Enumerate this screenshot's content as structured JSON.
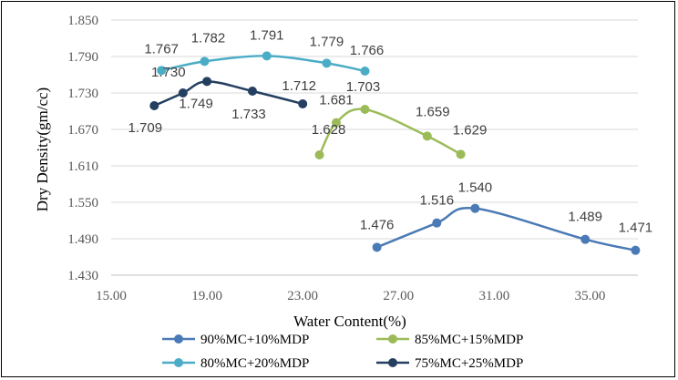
{
  "chart_data": {
    "type": "line",
    "title": "",
    "xlabel": "Water Content(%)",
    "ylabel": "Dry Density(gm/cc)",
    "xlim": [
      15.0,
      37.0
    ],
    "ylim": [
      1.43,
      1.85
    ],
    "x_ticks": [
      "15.00",
      "19.00",
      "23.00",
      "27.00",
      "31.00",
      "35.00"
    ],
    "y_ticks": [
      "1.430",
      "1.490",
      "1.550",
      "1.610",
      "1.670",
      "1.730",
      "1.790",
      "1.850"
    ],
    "grid": "horizontal",
    "legend_position": "bottom",
    "series": [
      {
        "name": "90%MC+10%MDP",
        "color": "#4a7ab5",
        "x": [
          26.1,
          28.6,
          30.2,
          34.8,
          36.9
        ],
        "y": [
          1.476,
          1.516,
          1.54,
          1.489,
          1.471
        ],
        "labels": [
          "1.476",
          "1.516",
          "1.540",
          "1.489",
          "1.471"
        ]
      },
      {
        "name": "85%MC+15%MDP",
        "color": "#9bbb59",
        "x": [
          23.7,
          24.4,
          25.6,
          28.2,
          29.6
        ],
        "y": [
          1.628,
          1.681,
          1.703,
          1.659,
          1.629
        ],
        "labels": [
          "1.628",
          "1.681",
          "1.703",
          "1.659",
          "1.629"
        ]
      },
      {
        "name": "80%MC+20%MDP",
        "color": "#4bacc6",
        "x": [
          17.1,
          18.9,
          21.5,
          24.0,
          25.6
        ],
        "y": [
          1.767,
          1.782,
          1.791,
          1.779,
          1.766
        ],
        "labels": [
          "1.767",
          "1.782",
          "1.791",
          "1.779",
          "1.766"
        ]
      },
      {
        "name": "75%MC+25%MDP",
        "color": "#243f60",
        "x": [
          16.8,
          18.0,
          19.0,
          20.9,
          23.0
        ],
        "y": [
          1.709,
          1.73,
          1.749,
          1.733,
          1.712
        ],
        "labels": [
          "1.709",
          "1.730",
          "1.749",
          "1.733",
          "1.712"
        ]
      }
    ]
  }
}
